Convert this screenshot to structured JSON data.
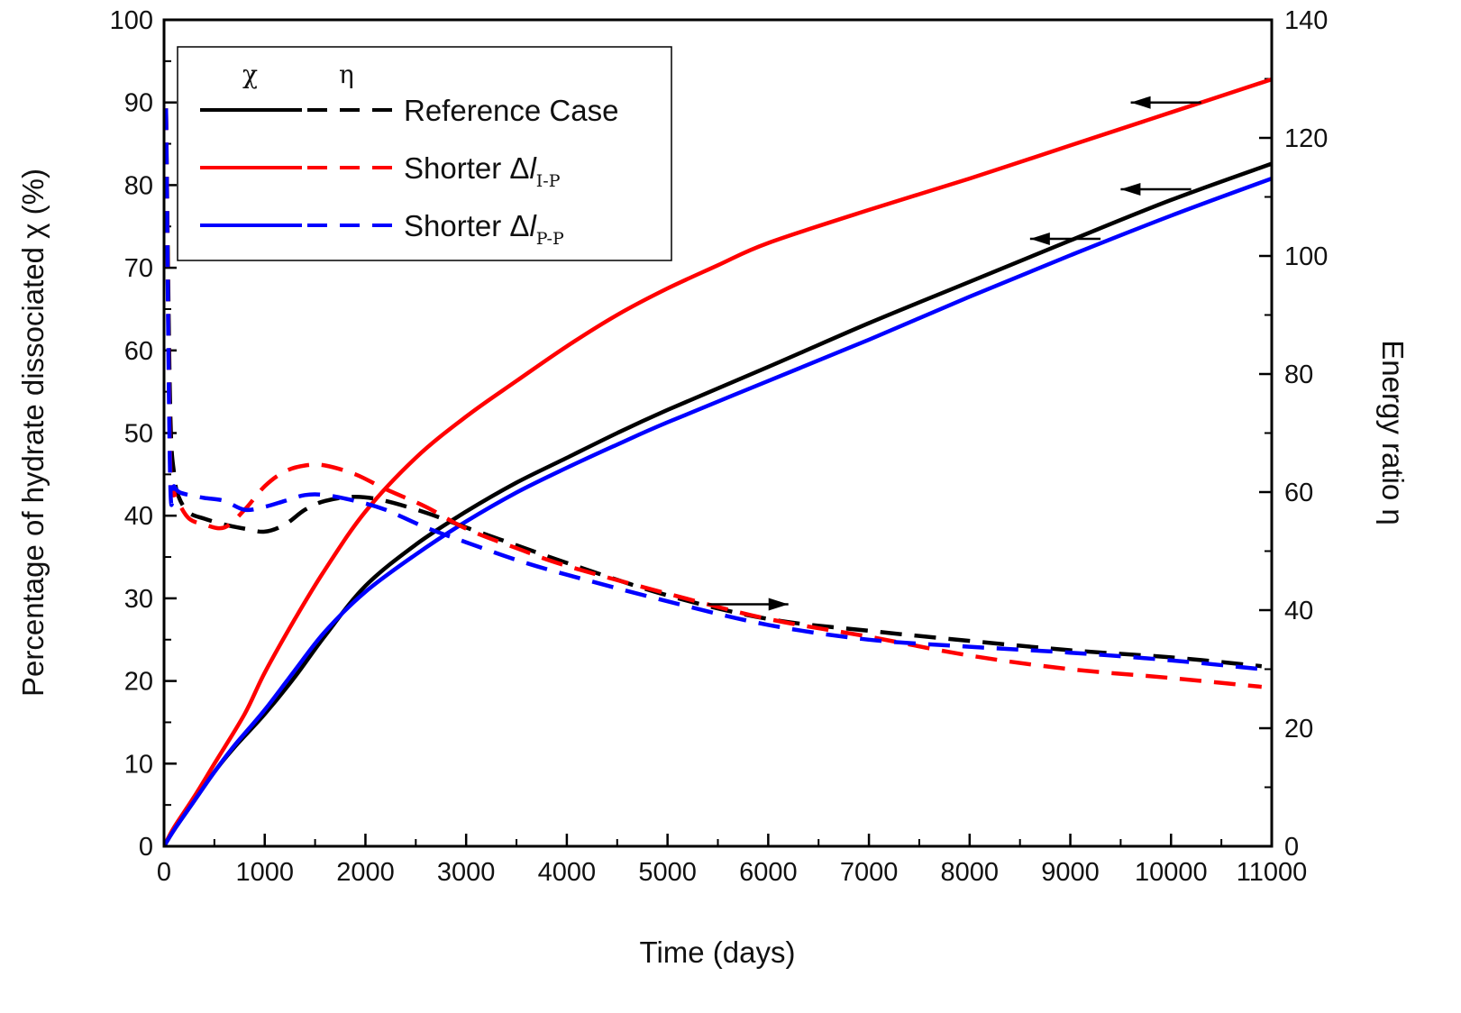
{
  "chart_data": {
    "type": "line",
    "xlabel": "Time (days)",
    "ylabel_left": "Percentage of hydrate dissociated χ (%)",
    "ylabel_right": "Energy ratio η",
    "xlim": [
      0,
      11000
    ],
    "ylim_left": [
      0,
      100
    ],
    "ylim_right": [
      0,
      140
    ],
    "x_ticks": [
      "0",
      "1000",
      "2000",
      "3000",
      "4000",
      "5000",
      "6000",
      "7000",
      "8000",
      "9000",
      "10000",
      "11000"
    ],
    "y_left_ticks": [
      "0",
      "10",
      "20",
      "30",
      "40",
      "50",
      "60",
      "70",
      "80",
      "90",
      "100"
    ],
    "y_right_ticks": [
      "0",
      "20",
      "40",
      "60",
      "80",
      "100",
      "120",
      "140"
    ],
    "grid": false,
    "legend": {
      "placement": "top-left",
      "header_chi": "χ",
      "header_eta": "η",
      "entries": [
        {
          "label": "Reference Case",
          "color": "#000000"
        },
        {
          "label_main": "Shorter Δ",
          "label_italic": "l",
          "label_sub": "I-P",
          "color": "#ff0000"
        },
        {
          "label_main": "Shorter Δ",
          "label_italic": "l",
          "label_sub": "P-P",
          "color": "#0000ff"
        }
      ]
    },
    "annotations": [
      {
        "type": "arrow",
        "direction": "left",
        "note": "χ axis",
        "x_from": 10300,
        "x_to": 9600,
        "y_left": 90
      },
      {
        "type": "arrow",
        "direction": "left",
        "note": "χ axis",
        "x_from": 10200,
        "x_to": 9500,
        "y_left": 79.5
      },
      {
        "type": "arrow",
        "direction": "left",
        "note": "χ axis",
        "x_from": 9300,
        "x_to": 8600,
        "y_left": 73.5
      },
      {
        "type": "arrow",
        "direction": "right",
        "note": "η axis",
        "x_from": 5400,
        "x_to": 6200,
        "y_right": 41
      }
    ],
    "series": [
      {
        "name": "Reference Case χ",
        "axis": "left",
        "color": "#000000",
        "dash": "solid",
        "x": [
          0,
          100,
          300,
          500,
          700,
          1000,
          1300,
          1600,
          2000,
          2500,
          3000,
          3500,
          4000,
          4500,
          5000,
          6000,
          7000,
          8000,
          9000,
          10000,
          11000
        ],
        "y": [
          0,
          2,
          5.5,
          9,
          12,
          16,
          20.5,
          25.5,
          31.5,
          36.5,
          40.5,
          44,
          47,
          50,
          52.8,
          58,
          63.3,
          68.3,
          73.3,
          78.2,
          82.6
        ]
      },
      {
        "name": "Shorter ΔlI-P χ",
        "axis": "left",
        "color": "#ff0000",
        "dash": "solid",
        "x": [
          0,
          100,
          300,
          500,
          800,
          1000,
          1300,
          1600,
          2000,
          2500,
          3000,
          3500,
          4000,
          4500,
          5000,
          5500,
          6000,
          7000,
          8000,
          9000,
          10000,
          11000
        ],
        "y": [
          0,
          2.3,
          6,
          10,
          16,
          21,
          27.5,
          33.5,
          40.5,
          47,
          52,
          56.3,
          60.5,
          64.3,
          67.5,
          70.3,
          73,
          77,
          80.8,
          84.8,
          88.8,
          92.8
        ]
      },
      {
        "name": "Shorter ΔlP-P χ",
        "axis": "left",
        "color": "#0000ff",
        "dash": "solid",
        "x": [
          0,
          100,
          300,
          500,
          700,
          1000,
          1300,
          1600,
          2000,
          2500,
          3000,
          3500,
          4000,
          4500,
          5000,
          6000,
          7000,
          8000,
          9000,
          10000,
          11000
        ],
        "y": [
          0,
          2,
          5.5,
          9,
          12.2,
          16.5,
          21.3,
          26,
          30.8,
          35.3,
          39.3,
          42.8,
          45.8,
          48.6,
          51.3,
          56.3,
          61.3,
          66.5,
          71.5,
          76.3,
          80.8
        ]
      },
      {
        "name": "Reference Case η",
        "axis": "right",
        "color": "#000000",
        "dash": "dashed",
        "x": [
          20,
          60,
          100,
          150,
          250,
          400,
          600,
          800,
          1000,
          1200,
          1400,
          1600,
          1900,
          2200,
          2600,
          3000,
          3500,
          4000,
          5000,
          6000,
          7000,
          8000,
          9000,
          10000,
          10900
        ],
        "y": [
          125,
          75,
          63,
          59,
          56.5,
          55.5,
          54.5,
          53.8,
          53.3,
          54.5,
          57,
          58.5,
          59.2,
          58.5,
          56.5,
          54,
          51,
          48,
          42.5,
          38.5,
          36.5,
          34.8,
          33.2,
          32,
          30.5
        ]
      },
      {
        "name": "Shorter ΔlI-P η",
        "axis": "right",
        "color": "#ff0000",
        "dash": "dashed",
        "x": [
          20,
          60,
          100,
          150,
          250,
          400,
          600,
          800,
          1000,
          1200,
          1400,
          1600,
          1900,
          2200,
          2600,
          3000,
          3500,
          4000,
          5000,
          6000,
          7000,
          8000,
          9000,
          10000,
          10900
        ],
        "y": [
          125,
          66,
          60,
          58,
          55.5,
          54.5,
          54,
          57,
          61,
          63.5,
          64.5,
          64.5,
          63,
          60.5,
          57.5,
          53.8,
          50.5,
          47.5,
          42.8,
          38.5,
          35.5,
          32.3,
          30,
          28.5,
          27
        ]
      },
      {
        "name": "Shorter ΔlP-P η",
        "axis": "right",
        "color": "#0000ff",
        "dash": "dashed",
        "x": [
          20,
          60,
          100,
          150,
          250,
          400,
          600,
          800,
          1000,
          1200,
          1400,
          1600,
          1900,
          2200,
          2600,
          3000,
          3500,
          4000,
          5000,
          6000,
          7000,
          8000,
          9000,
          10000,
          10900
        ],
        "y": [
          125,
          63,
          61,
          60,
          59.5,
          59,
          58.5,
          57,
          57.5,
          58.5,
          59.5,
          59.5,
          58.5,
          57,
          54,
          51.5,
          48.5,
          46,
          41.5,
          37.5,
          35,
          33.8,
          32.8,
          31.5,
          30
        ]
      }
    ]
  }
}
